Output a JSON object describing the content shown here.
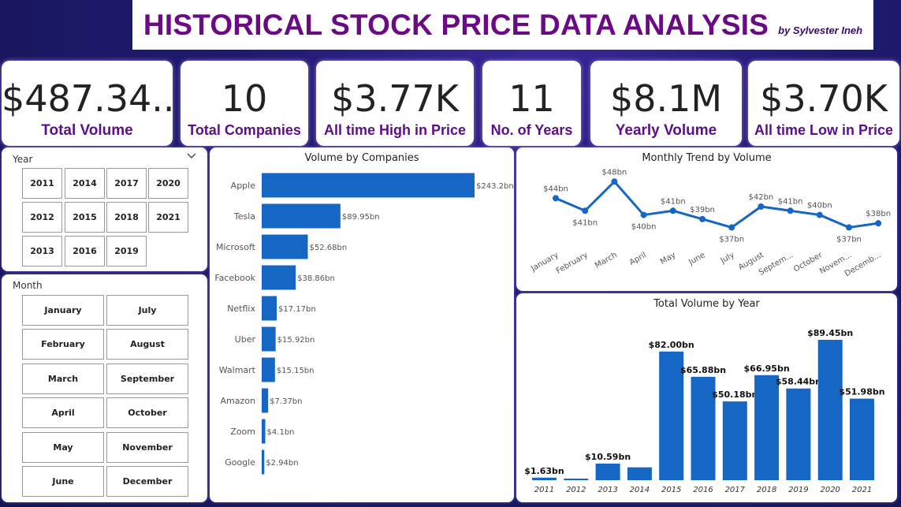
{
  "header": {
    "title": "HISTORICAL STOCK PRICE DATA ANALYSIS",
    "byline": "by Sylvester Ineh"
  },
  "kpis": [
    {
      "value": "$487.34...",
      "label": "Total Volume"
    },
    {
      "value": "10",
      "label": "Total Companies"
    },
    {
      "value": "$3.77K",
      "label": "All time High in Price"
    },
    {
      "value": "11",
      "label": "No. of Years"
    },
    {
      "value": "$8.1M",
      "label": "Yearly Volume"
    },
    {
      "value": "$3.70K",
      "label": "All time Low in Price"
    }
  ],
  "year_slicer": {
    "title": "Year",
    "options": [
      "2011",
      "2014",
      "2017",
      "2020",
      "2012",
      "2015",
      "2018",
      "2021",
      "2013",
      "2016",
      "2019"
    ]
  },
  "month_slicer": {
    "title": "Month",
    "options": [
      "January",
      "July",
      "February",
      "August",
      "March",
      "September",
      "April",
      "October",
      "May",
      "November",
      "June",
      "December"
    ]
  },
  "colors": {
    "bar": "#1666c4",
    "accent": "#6b0a84"
  },
  "chart_data": [
    {
      "type": "bar",
      "orientation": "horizontal",
      "title": "Volume by Companies",
      "unit": "bn",
      "categories": [
        "Apple",
        "Tesla",
        "Microsoft",
        "Facebook",
        "Netflix",
        "Uber",
        "Walmart",
        "Amazon",
        "Zoom",
        "Google"
      ],
      "values": [
        243.2,
        89.95,
        52.68,
        38.86,
        17.17,
        15.92,
        15.15,
        7.37,
        4.1,
        2.94
      ],
      "labels": [
        "$243.2bn",
        "$89.95bn",
        "$52.68bn",
        "$38.86bn",
        "$17.17bn",
        "$15.92bn",
        "$15.15bn",
        "$7.37bn",
        "$4.1bn",
        "$2.94bn"
      ],
      "xlim": [
        0,
        243.2
      ]
    },
    {
      "type": "line",
      "title": "Monthly Trend by Volume",
      "unit": "bn",
      "categories": [
        "January",
        "February",
        "March",
        "April",
        "May",
        "June",
        "July",
        "August",
        "Septem...",
        "October",
        "Novem...",
        "Decemb..."
      ],
      "values": [
        44,
        41,
        48,
        40,
        41,
        39,
        37,
        42,
        41,
        40,
        37,
        38
      ],
      "labels": [
        "$44bn",
        "$41bn",
        "$48bn",
        "$40bn",
        "$41bn",
        "$39bn",
        "$37bn",
        "$42bn",
        "$41bn",
        "$40bn",
        "$37bn",
        "$38bn"
      ],
      "ylim": [
        35,
        49
      ]
    },
    {
      "type": "bar",
      "title": "Total Volume by Year",
      "unit": "bn",
      "categories": [
        "2011",
        "2012",
        "2013",
        "2014",
        "2015",
        "2016",
        "2017",
        "2018",
        "2019",
        "2020",
        "2021"
      ],
      "values": [
        1.63,
        0.9,
        10.59,
        8.2,
        82.0,
        65.88,
        50.18,
        66.95,
        58.44,
        89.45,
        51.98
      ],
      "labels": [
        "$1.63bn",
        "",
        "$10.59bn",
        "",
        "$82.00bn",
        "$65.88bn",
        "$50.18bn",
        "$66.95bn",
        "$58.44bn",
        "$89.45bn",
        "$51.98bn"
      ],
      "ylim": [
        0,
        89.45
      ]
    }
  ]
}
